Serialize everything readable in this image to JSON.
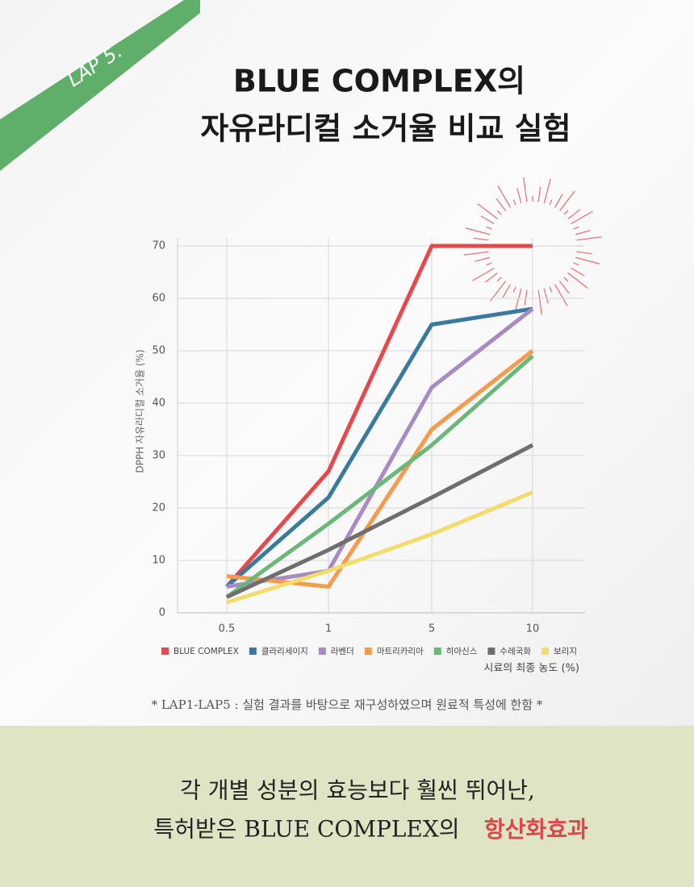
{
  "badge": "LAP 5.",
  "title_lines": [
    "BLUE COMPLEX의",
    "자유라디컬 소거율 비교 실험"
  ],
  "chart_data": {
    "type": "line",
    "ylabel": "DPPH 자유라디컬 소거율 (%)",
    "xlabel": "시료의 최종 농도 (%)",
    "categories": [
      "0.5",
      "1",
      "5",
      "10"
    ],
    "ylim": [
      0,
      70
    ],
    "yticks": [
      0,
      10,
      20,
      30,
      40,
      50,
      60,
      70
    ],
    "grid": true,
    "series": [
      {
        "name": "BLUE COMPLEX",
        "color": "#e8474c",
        "values": [
          5,
          27,
          70,
          70
        ]
      },
      {
        "name": "클라리세이지",
        "color": "#3a7a9c",
        "values": [
          5,
          22,
          55,
          58
        ]
      },
      {
        "name": "라벤더",
        "color": "#a98bc4",
        "values": [
          5,
          8,
          43,
          58
        ]
      },
      {
        "name": "마트리카리아",
        "color": "#f79a4c",
        "values": [
          7,
          5,
          35,
          50
        ]
      },
      {
        "name": "히아신스",
        "color": "#6ab77a",
        "values": [
          3,
          17,
          32,
          49
        ]
      },
      {
        "name": "수레국화",
        "color": "#6e6e6e",
        "values": [
          3,
          12,
          22,
          32
        ]
      },
      {
        "name": "보리지",
        "color": "#f3dc6b",
        "values": [
          2,
          8,
          15,
          23
        ]
      }
    ]
  },
  "note": "*  LAP1-LAP5 : 실험 결과를 바탕으로 재구성하였으며 원료적 특성에 한함  *",
  "footer": {
    "line1": "각 개별 성분의 효능보다 훨씬 뛰어난,",
    "line2": "특허받은 BLUE COMPLEX의",
    "highlight": "항산화효과"
  }
}
